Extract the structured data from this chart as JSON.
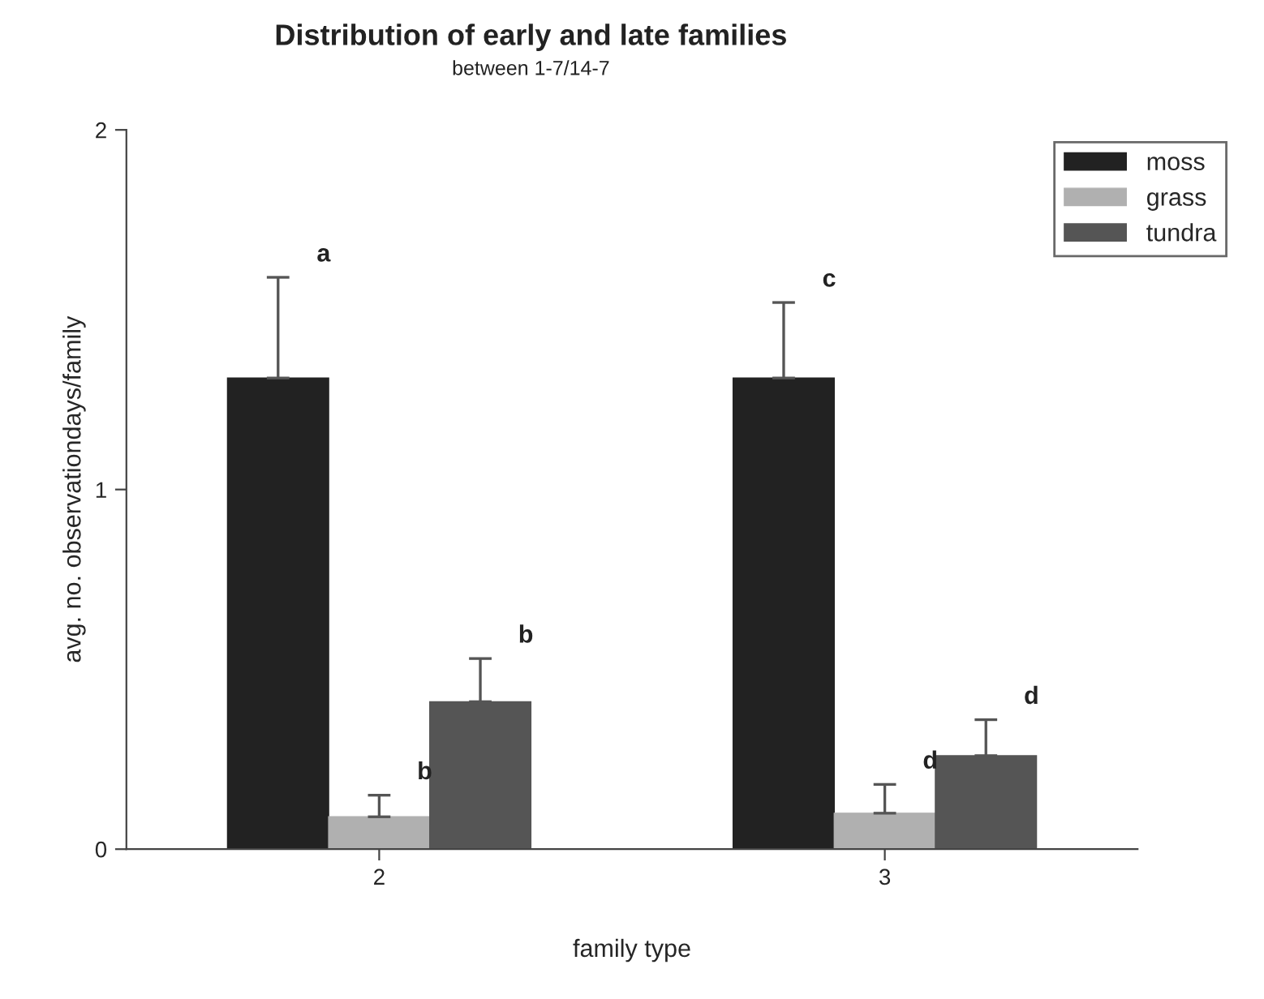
{
  "chart_data": {
    "type": "bar",
    "title": "Distribution of early and late families",
    "subtitle": "between 1-7/14-7",
    "xlabel": "family type",
    "ylabel": "avg. no. observationdays/family",
    "categories": [
      "2",
      "3"
    ],
    "series": [
      {
        "name": "moss",
        "color": "#222222",
        "values": [
          1.31,
          1.31
        ],
        "errors": [
          [
            1.31,
            1.59
          ],
          [
            1.31,
            1.52
          ]
        ]
      },
      {
        "name": "grass",
        "color": "#b0b0b0",
        "values": [
          0.09,
          0.1
        ],
        "errors": [
          [
            0.09,
            0.15
          ],
          [
            0.1,
            0.18
          ]
        ]
      },
      {
        "name": "tundra",
        "color": "#555555",
        "values": [
          0.41,
          0.26
        ],
        "errors": [
          [
            0.41,
            0.53
          ],
          [
            0.26,
            0.36
          ]
        ]
      }
    ],
    "annotations": [
      "a",
      "b",
      "b",
      "c",
      "d",
      "d"
    ],
    "ylim": [
      0,
      2
    ],
    "yticks": [
      0,
      1,
      2
    ],
    "legend": "top right",
    "grid": false
  }
}
